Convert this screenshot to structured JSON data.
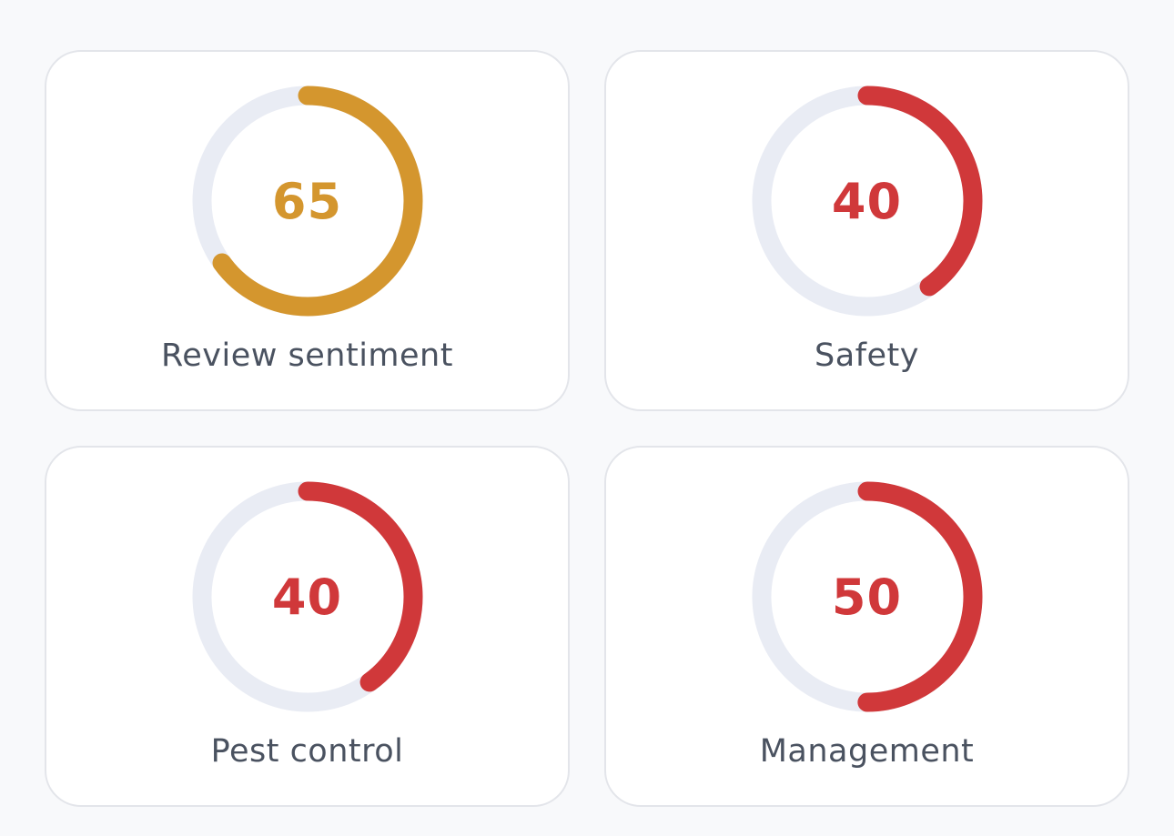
{
  "colors": {
    "track": "#e9ecf4",
    "medium": "#d4962e",
    "low": "#d0383a"
  },
  "cards": [
    {
      "label": "Review sentiment",
      "score": "65",
      "value": 65,
      "color": "#d4962e"
    },
    {
      "label": "Safety",
      "score": "40",
      "value": 40,
      "color": "#d0383a"
    },
    {
      "label": "Pest control",
      "score": "40",
      "value": 40,
      "color": "#d0383a"
    },
    {
      "label": "Management",
      "score": "50",
      "value": 50,
      "color": "#d0383a"
    }
  ]
}
